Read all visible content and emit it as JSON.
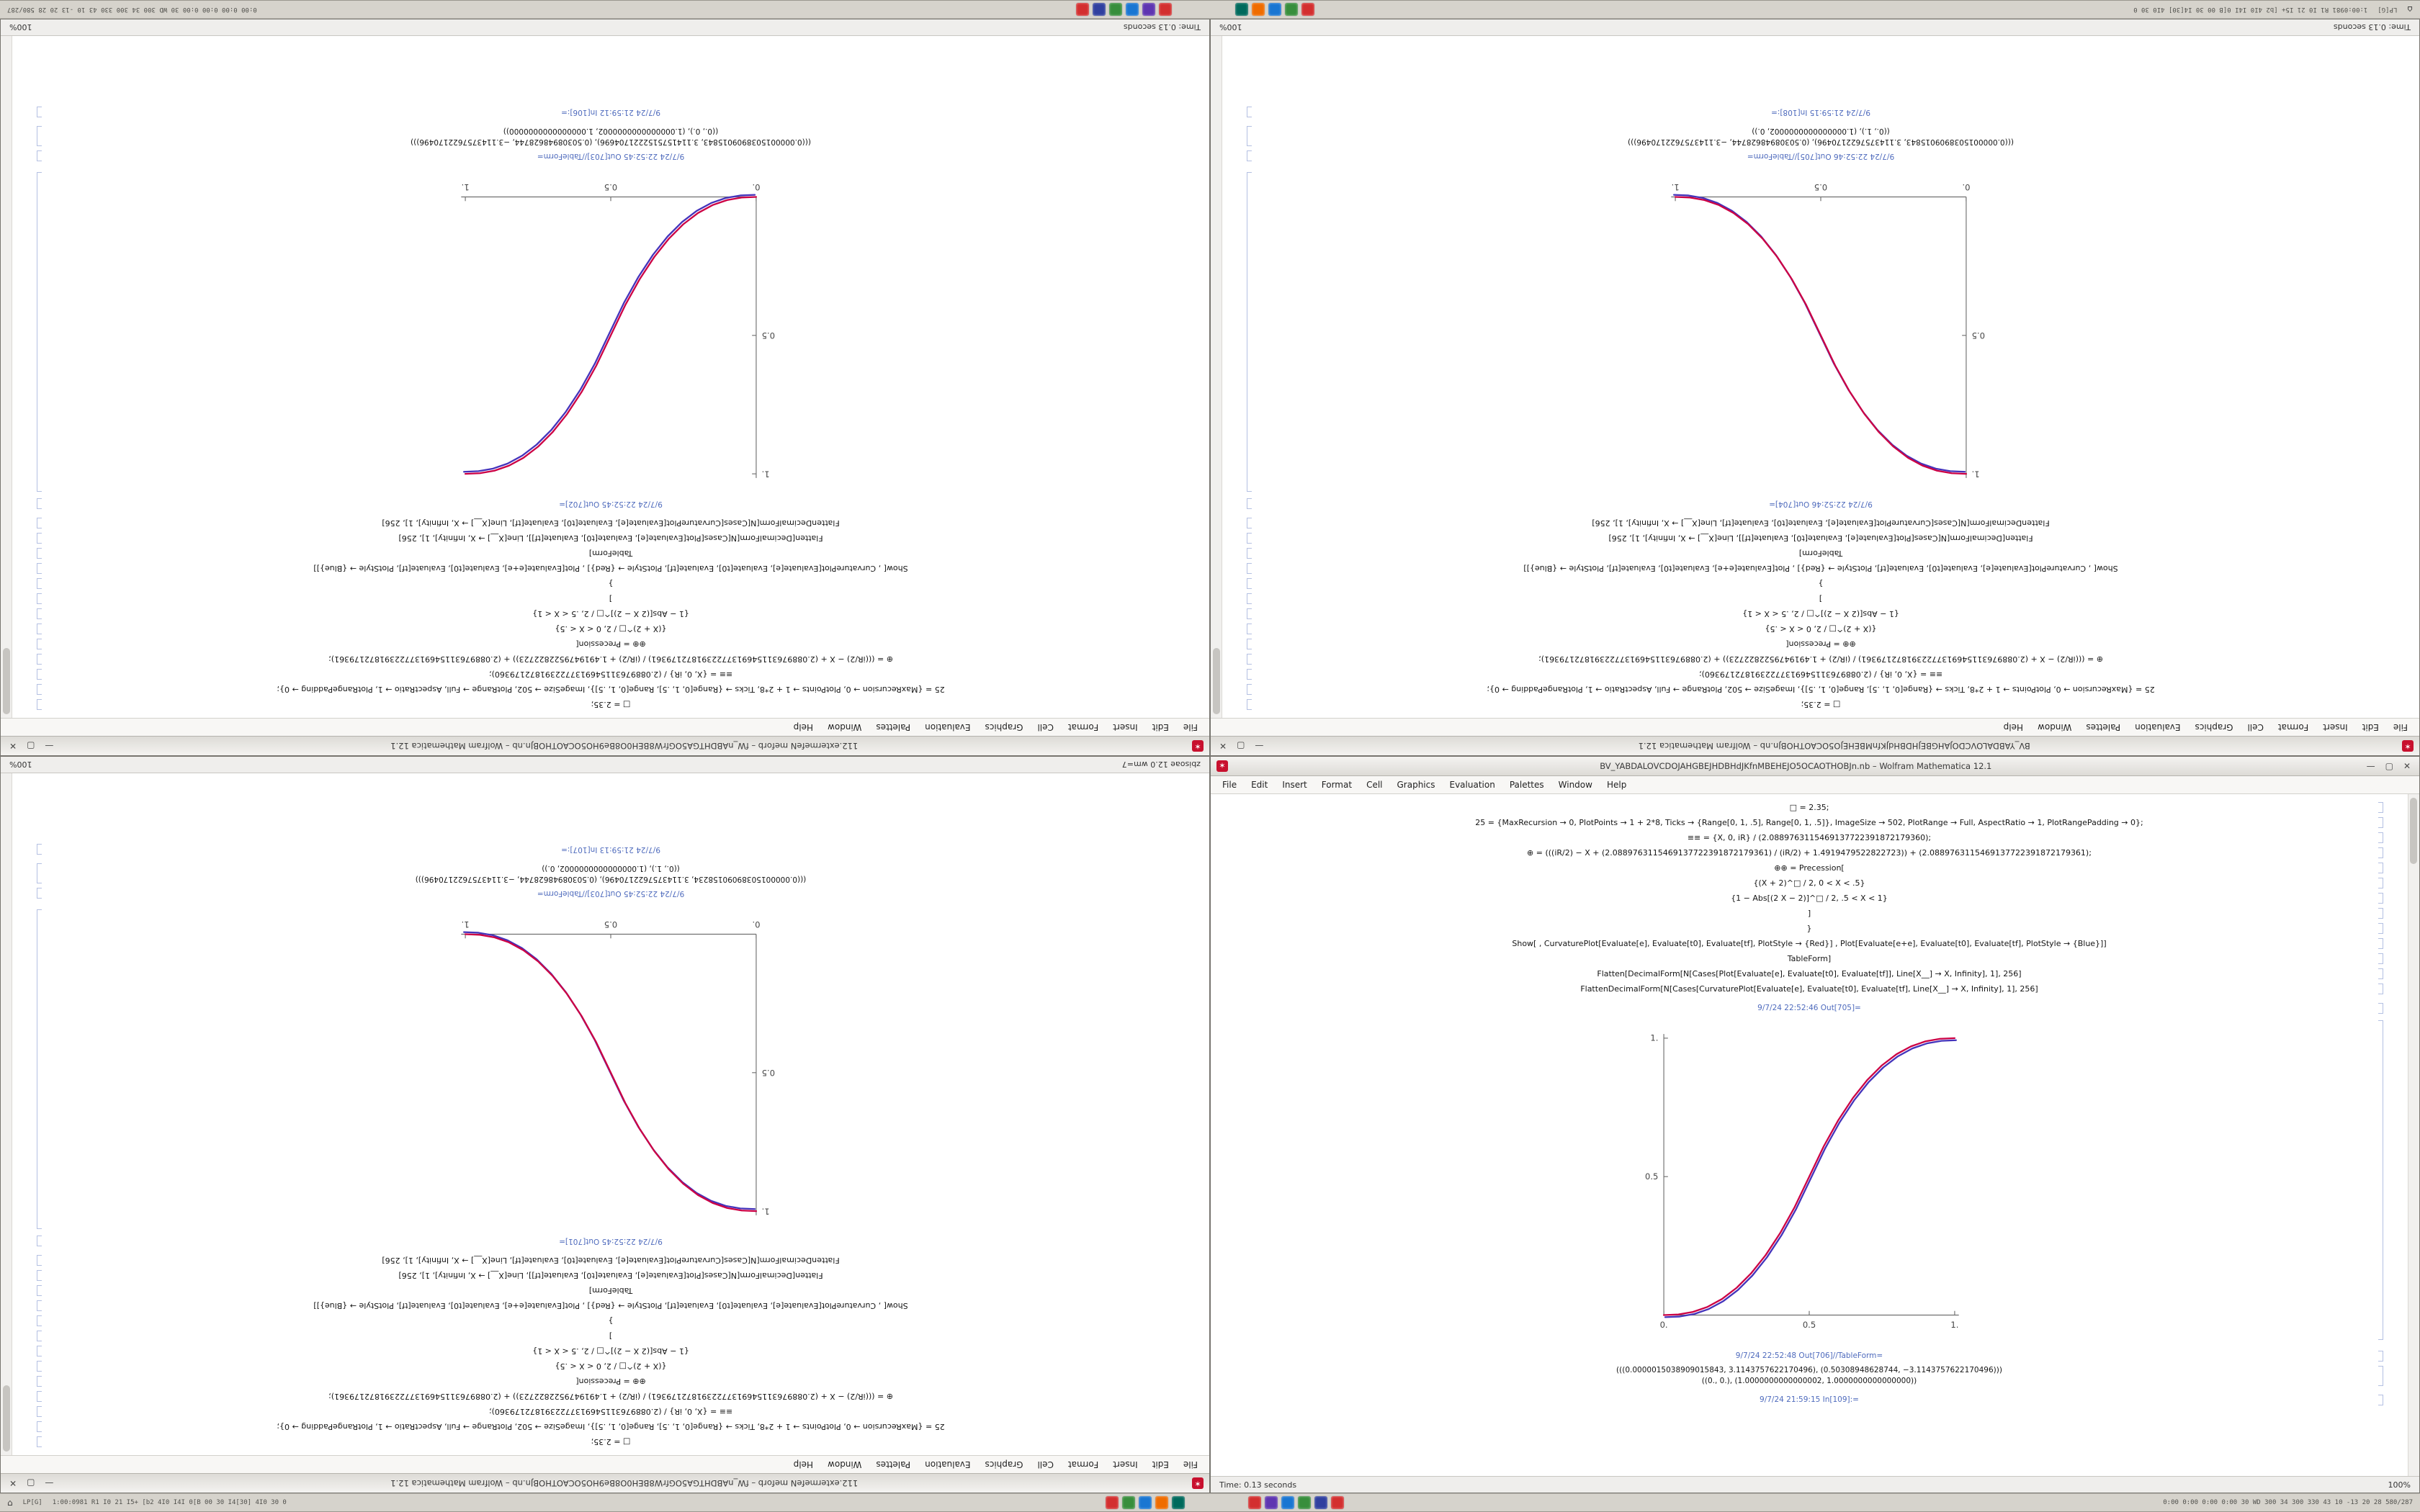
{
  "taskbar": {
    "left_glyph": "⌂",
    "left_label": "LP[G]",
    "left_numbers": "1:00:0981 R1 I0 21 I5+ [b2 4I0 I4I 0[B 00 30 I4[30] 4I0 30 0",
    "right_numbers": "0:00 0:00 0:00 0:00 30 WD 300 34 300 330 43 10 -13 20 28 580/287",
    "icon_groups": [
      {
        "name": "app-group-1",
        "colors": [
          "#d32f2f",
          "#388e3c",
          "#1976d2",
          "#ef6c00",
          "#00695c"
        ]
      },
      {
        "name": "app-group-2",
        "colors": [
          "#d32f2f",
          "#5e35b1",
          "#1976d2",
          "#388e3c",
          "#303f9f",
          "#d32f2f"
        ]
      }
    ]
  },
  "window_buttons": [
    "—",
    "▢",
    "✕"
  ],
  "menu_items": [
    "File",
    "Edit",
    "Insert",
    "Format",
    "Cell",
    "Graphics",
    "Evaluation",
    "Palettes",
    "Window",
    "Help"
  ],
  "code_lines": [
    "□ = 2.35;",
    "25 = {MaxRecursion → 0, PlotPoints → 1 + 2*8, Ticks → {Range[0, 1, .5], Range[0, 1, .5]}, ImageSize → 502, PlotRange → Full, AspectRatio → 1, PlotRangePadding → 0};",
    "≡≡ = {X, 0, iR} / (2.0889763115469137722391872179360);",
    "⊕ = (((iR/2) − X + (2.0889763115469137722391872179361) / (iR/2) + 1.4919479522822723)) + (2.0889763115469137722391872179361);",
    "⊕⊕ = Precession[",
    "{(X + 2)^□ / 2, 0 < X < .5}",
    "{1 − Abs[(2 X − 2)]^□ / 2, .5 < X < 1}",
    "]",
    "}",
    "Show[ , CurvaturePlot[Evaluate[e], Evaluate[t0], Evaluate[tf], PlotStyle → {Red}] ,  Plot[Evaluate[e+e], Evaluate[t0], Evaluate[tf], PlotStyle → {Blue}]]",
    "TableForm]",
    "Flatten[DecimalForm[N[Cases[Plot[Evaluate[e], Evaluate[t0], Evaluate[tf]], Line[X__] → X, Infinity], 1], 256]",
    "FlattenDecimalForm[N[Cases[CurvaturePlot[Evaluate[e], Evaluate[t0], Evaluate[tf], Line[X__] → X, Infinity], 1], 256]"
  ],
  "chart_data": {
    "type": "line",
    "x": [
      0,
      0.05,
      0.1,
      0.15,
      0.2,
      0.25,
      0.3,
      0.35,
      0.4,
      0.45,
      0.5,
      0.55,
      0.6,
      0.65,
      0.7,
      0.75,
      0.8,
      0.85,
      0.9,
      0.95,
      1
    ],
    "series": [
      {
        "name": "top-left",
        "direction": "ascending",
        "values": [
          0,
          0.0022,
          0.0114,
          0.0295,
          0.058,
          0.0981,
          0.1505,
          0.2163,
          0.296,
          0.3903,
          0.5,
          0.6097,
          0.704,
          0.7837,
          0.8495,
          0.9019,
          0.942,
          0.9705,
          0.9886,
          0.9978,
          1
        ]
      },
      {
        "name": "top-right",
        "direction": "descending",
        "values": [
          1,
          0.9978,
          0.9886,
          0.9705,
          0.942,
          0.9019,
          0.8495,
          0.7837,
          0.704,
          0.6097,
          0.5,
          0.3903,
          0.296,
          0.2163,
          0.1505,
          0.0981,
          0.058,
          0.0295,
          0.0114,
          0.0022,
          0
        ]
      },
      {
        "name": "bottom-left",
        "direction": "descending",
        "values": [
          1,
          0.9978,
          0.9886,
          0.9705,
          0.942,
          0.9019,
          0.8495,
          0.7837,
          0.704,
          0.6097,
          0.5,
          0.3903,
          0.296,
          0.2163,
          0.1505,
          0.0981,
          0.058,
          0.0295,
          0.0114,
          0.0022,
          0
        ]
      },
      {
        "name": "bottom-right",
        "direction": "ascending",
        "values": [
          0,
          0.0022,
          0.0114,
          0.0295,
          0.058,
          0.0981,
          0.1505,
          0.2163,
          0.296,
          0.3903,
          0.5,
          0.6097,
          0.704,
          0.7837,
          0.8495,
          0.9019,
          0.942,
          0.9705,
          0.9886,
          0.9978,
          1
        ]
      }
    ],
    "xlim": [
      0,
      1
    ],
    "ylim": [
      0,
      1
    ],
    "xtick_labels": [
      "0.",
      "0.5",
      "1."
    ],
    "ytick_labels": [
      "0.5",
      "1."
    ],
    "grid": false,
    "legend": "none",
    "colors": {
      "red_curve": "#cc0044",
      "blue_curve": "#4433bb"
    }
  },
  "windows": [
    {
      "id": "top-left",
      "rotated": true,
      "series_index": 0,
      "title": "112.extermefeN meforb – fW_nABDHTGA5OGfrW8BEH0O8Be9HO5OCAOTHOBJn.nb – Wolfram Mathematica 12.1",
      "out_plot_label": "9/7/24 22:52:45 Out[702]=",
      "out_table_label": "9/7/24 22:52:45 Out[703]//TableForm=",
      "table_lines": [
        "(((0.0000015038909015843, 3.1141575152221704696), (0.50308948628744, −3.1143757622170496)))",
        "((0., 0.), (1.0000000000000002, 1.0000000000000000))"
      ],
      "trailing_in_label": "9/7/24 21:59:12 In[106]:=",
      "status_left": "Time: 0.13 seconds",
      "status_right": "100%"
    },
    {
      "id": "top-right",
      "rotated": true,
      "series_index": 1,
      "title": "BV_YABDALOVCDOJAHGBEJHDBHdJKfnMBEHEJO5OCAOTHOBJn.nb – Wolfram Mathematica 12.1",
      "out_plot_label": "9/7/24 22:52:46 Out[704]=",
      "out_table_label": "9/7/24 22:52:46 Out[705]//TableForm=",
      "table_lines": [
        "(((0.0000015038909015843, 3.1143757622170496), (0.50308948628744, −3.1143757622170496)))",
        "((0., 1.), (1.0000000000000002, 0.))"
      ],
      "trailing_in_label": "9/7/24 21:59:15 In[108]:=",
      "status_left": "Time: 0.13 seconds",
      "status_right": "100%"
    },
    {
      "id": "bottom-left",
      "rotated": true,
      "series_index": 2,
      "title": "112.extermefeN meforb – fW_nABDHTGA5OGfrW8BEH0O8Be9HO5OCAOTHOBJn.nb – Wolfram Mathematica 12.1",
      "out_plot_label": "9/7/24 22:52:45 Out[701]=",
      "out_table_label": "9/7/24 22:52:45 Out[703]//TableForm=",
      "table_lines": [
        "(((0.00000150389090158234, 3.1143757622170496), (0.50308948628744, −3.1143757622170496)))",
        "((0., 1.), (1.0000000000000002, 0.))"
      ],
      "trailing_in_label": "9/7/24 21:59:13 In[107]:=",
      "status_left": "zbisoae 12.0 wm=7",
      "status_right": "100%"
    },
    {
      "id": "bottom-right",
      "rotated": false,
      "series_index": 3,
      "title": "BV_YABDALOVCDOJAHGBEJHDBHdJKfnMBEHEJO5OCAOTHOBJn.nb – Wolfram Mathematica 12.1",
      "out_plot_label": "9/7/24 22:52:46 Out[705]=",
      "out_table_label": "9/7/24 22:52:48 Out[706]//TableForm=",
      "table_lines": [
        "(((0.0000015038909015843, 3.1143757622170496), (0.50308948628744, −3.1143757622170496)))",
        "((0., 0.), (1.0000000000000002, 1.0000000000000000))"
      ],
      "trailing_in_label": "9/7/24 21:59:15 In[109]:=",
      "status_left": "Time: 0.13 seconds",
      "status_right": "100%"
    }
  ]
}
